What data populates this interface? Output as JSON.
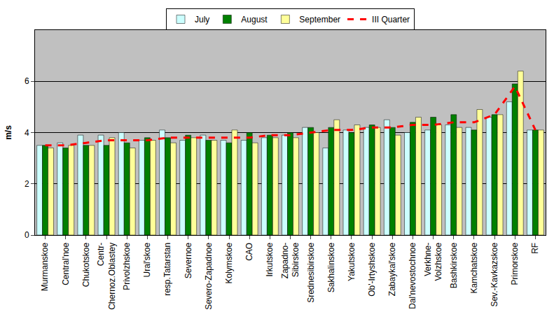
{
  "chart_data": {
    "type": "bar",
    "y_label": "m/s",
    "categories": [
      "Murmanskoe",
      "Central'noe",
      "Chukotskoe",
      "Centr-\nChernoz.Oblastey",
      "Privolzhskoe",
      "Ural'skoe",
      "resp.Tatarstan",
      "Severnoe",
      "Severo-Zapadnoe",
      "Kolymskoe",
      "CAO",
      "Irkutskoe",
      "Zapadno-\nSibirskoe",
      "Srednesibirskoe",
      "Sakhalinskoe",
      "Yakutskoe",
      "Ob'-Irtyshskoe",
      "Zabaykal'skoe",
      "Dal'nevostochnoe",
      "Verkhne-\nVolzhskoe",
      "Bashkirskoe",
      "Kamchatskoe",
      "Sev.-Kavkazskoe",
      "Primorskoe",
      "RF"
    ],
    "series": [
      {
        "name": "July",
        "type": "bar",
        "color": "#ccffff",
        "values": [
          3.5,
          3.6,
          3.9,
          3.9,
          4.0,
          3.7,
          4.1,
          3.7,
          3.9,
          3.7,
          3.7,
          3.8,
          3.9,
          4.2,
          3.4,
          4.1,
          4.2,
          4.5,
          4.0,
          4.1,
          4.3,
          4.2,
          4.6,
          5.2,
          4.1
        ]
      },
      {
        "name": "August",
        "type": "bar",
        "color": "#008000",
        "values": [
          3.5,
          3.4,
          3.5,
          3.5,
          3.6,
          3.8,
          3.8,
          3.9,
          3.7,
          3.6,
          4.0,
          3.9,
          4.0,
          4.2,
          4.2,
          4.0,
          4.3,
          4.2,
          4.4,
          4.6,
          4.7,
          4.1,
          4.7,
          5.9,
          4.1
        ]
      },
      {
        "name": "September",
        "type": "bar",
        "color": "#ffff99",
        "values": [
          3.4,
          3.5,
          3.5,
          3.8,
          3.4,
          3.7,
          3.6,
          3.8,
          3.7,
          4.1,
          3.6,
          3.8,
          3.8,
          4.0,
          4.5,
          4.3,
          4.2,
          3.9,
          4.6,
          4.3,
          4.2,
          4.9,
          4.7,
          6.4,
          4.1
        ]
      },
      {
        "name": "III Quarter",
        "type": "line",
        "color": "#ff0000",
        "line_style": "dashed",
        "values": [
          3.5,
          3.5,
          3.6,
          3.7,
          3.7,
          3.7,
          3.8,
          3.8,
          3.8,
          3.8,
          3.8,
          3.9,
          3.9,
          4.0,
          4.1,
          4.1,
          4.2,
          4.2,
          4.3,
          4.3,
          4.4,
          4.4,
          4.7,
          5.8,
          4.1
        ]
      }
    ],
    "ylim": [
      0,
      8
    ],
    "yticks": [
      0,
      2,
      4,
      6
    ],
    "grid": true,
    "legend": "top"
  }
}
